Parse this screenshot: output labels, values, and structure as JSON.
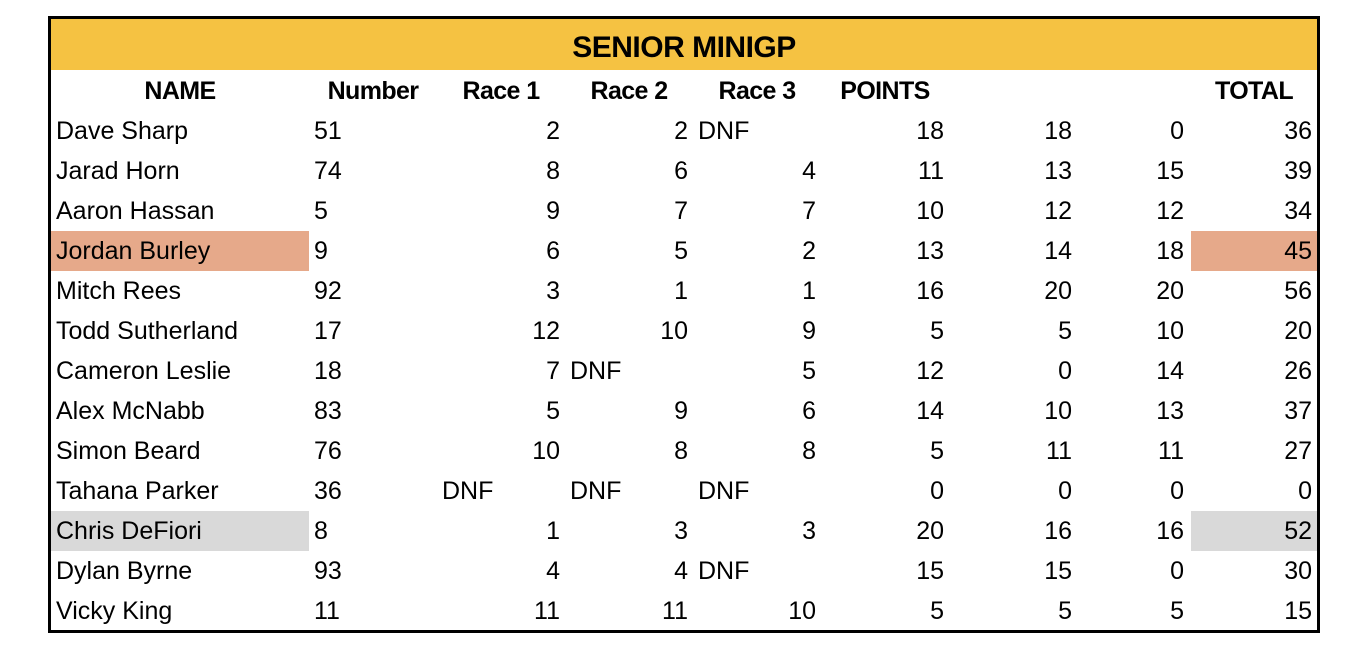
{
  "title": "SENIOR MINIGP",
  "headers": {
    "name": "NAME",
    "number": "Number",
    "race1": "Race 1",
    "race2": "Race 2",
    "race3": "Race 3",
    "points": "POINTS",
    "total": "TOTAL"
  },
  "highlight_colors": {
    "header_bg": "#f5c242",
    "bronze": "#e6a98a",
    "gold": "#ffff55",
    "silver": "#d9d9d9"
  },
  "rows": [
    {
      "name": "Dave Sharp",
      "number": "51",
      "race1": "2",
      "race2": "2",
      "race3": "DNF",
      "p1": "18",
      "p2": "18",
      "p3": "0",
      "total": "36",
      "highlight": ""
    },
    {
      "name": "Jarad Horn",
      "number": "74",
      "race1": "8",
      "race2": "6",
      "race3": "4",
      "p1": "11",
      "p2": "13",
      "p3": "15",
      "total": "39",
      "highlight": ""
    },
    {
      "name": "Aaron Hassan",
      "number": "5",
      "race1": "9",
      "race2": "7",
      "race3": "7",
      "p1": "10",
      "p2": "12",
      "p3": "12",
      "total": "34",
      "highlight": ""
    },
    {
      "name": "Jordan Burley",
      "number": "9",
      "race1": "6",
      "race2": "5",
      "race3": "2",
      "p1": "13",
      "p2": "14",
      "p3": "18",
      "total": "45",
      "highlight": "bronze"
    },
    {
      "name": "Mitch Rees",
      "number": "92",
      "race1": "3",
      "race2": "1",
      "race3": "1",
      "p1": "16",
      "p2": "20",
      "p3": "20",
      "total": "56",
      "highlight": "gold"
    },
    {
      "name": "Todd Sutherland",
      "number": "17",
      "race1": "12",
      "race2": "10",
      "race3": "9",
      "p1": "5",
      "p2": "5",
      "p3": "10",
      "total": "20",
      "highlight": ""
    },
    {
      "name": "Cameron Leslie",
      "number": "18",
      "race1": "7",
      "race2": "DNF",
      "race3": "5",
      "p1": "12",
      "p2": "0",
      "p3": "14",
      "total": "26",
      "highlight": ""
    },
    {
      "name": "Alex McNabb",
      "number": "83",
      "race1": "5",
      "race2": "9",
      "race3": "6",
      "p1": "14",
      "p2": "10",
      "p3": "13",
      "total": "37",
      "highlight": ""
    },
    {
      "name": "Simon Beard",
      "number": "76",
      "race1": "10",
      "race2": "8",
      "race3": "8",
      "p1": "5",
      "p2": "11",
      "p3": "11",
      "total": "27",
      "highlight": ""
    },
    {
      "name": "Tahana Parker",
      "number": "36",
      "race1": "DNF",
      "race2": "DNF",
      "race3": "DNF",
      "p1": "0",
      "p2": "0",
      "p3": "0",
      "total": "0",
      "highlight": ""
    },
    {
      "name": "Chris DeFiori",
      "number": "8",
      "race1": "1",
      "race2": "3",
      "race3": "3",
      "p1": "20",
      "p2": "16",
      "p3": "16",
      "total": "52",
      "highlight": "silver"
    },
    {
      "name": "Dylan Byrne",
      "number": "93",
      "race1": "4",
      "race2": "4",
      "race3": "DNF",
      "p1": "15",
      "p2": "15",
      "p3": "0",
      "total": "30",
      "highlight": ""
    },
    {
      "name": "Vicky King",
      "number": "11",
      "race1": "11",
      "race2": "11",
      "race3": "10",
      "p1": "5",
      "p2": "5",
      "p3": "5",
      "total": "15",
      "highlight": ""
    }
  ]
}
